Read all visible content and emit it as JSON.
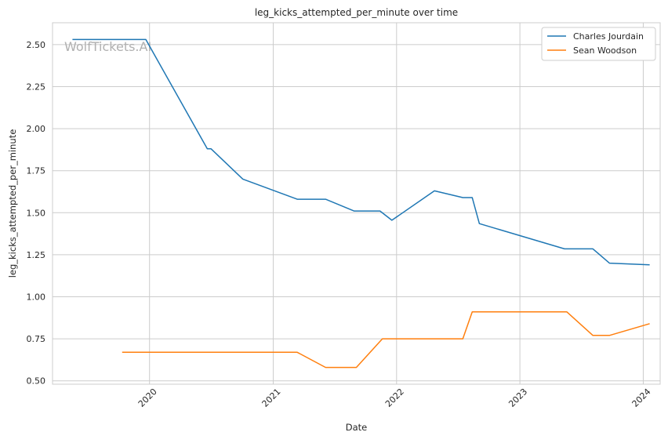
{
  "chart_data": {
    "type": "line",
    "title": "leg_kicks_attempted_per_minute over time",
    "xlabel": "Date",
    "ylabel": "leg_kicks_attempted_per_minute",
    "watermark": "WolfTickets.AI",
    "x_axis": {
      "type": "date",
      "range": [
        "2019-03-20",
        "2024-02-20"
      ],
      "tick_labels": [
        "2020",
        "2021",
        "2022",
        "2023",
        "2024"
      ],
      "tick_values": [
        "2020-01-01",
        "2021-01-01",
        "2022-01-01",
        "2023-01-01",
        "2024-01-01"
      ]
    },
    "y_axis": {
      "range": [
        0.48,
        2.63
      ],
      "ticks": [
        0.5,
        0.75,
        1.0,
        1.25,
        1.5,
        1.75,
        2.0,
        2.25,
        2.5
      ],
      "tick_labels": [
        "0.50",
        "0.75",
        "1.00",
        "1.25",
        "1.50",
        "1.75",
        "2.00",
        "2.25",
        "2.50"
      ]
    },
    "grid": true,
    "legend_position": "top-right",
    "series": [
      {
        "name": "Charles Jourdain",
        "color": "#1f77b4",
        "points": [
          [
            "2019-05-18",
            2.53
          ],
          [
            "2019-12-21",
            2.53
          ],
          [
            "2020-06-20",
            1.88
          ],
          [
            "2020-07-01",
            1.88
          ],
          [
            "2020-10-03",
            1.7
          ],
          [
            "2021-03-13",
            1.58
          ],
          [
            "2021-06-05",
            1.58
          ],
          [
            "2021-08-28",
            1.51
          ],
          [
            "2021-11-13",
            1.51
          ],
          [
            "2021-12-18",
            1.455
          ],
          [
            "2022-04-23",
            1.63
          ],
          [
            "2022-07-16",
            1.59
          ],
          [
            "2022-08-13",
            1.59
          ],
          [
            "2022-09-03",
            1.435
          ],
          [
            "2023-05-13",
            1.285
          ],
          [
            "2023-08-05",
            1.285
          ],
          [
            "2023-09-23",
            1.2
          ],
          [
            "2024-01-20",
            1.19
          ]
        ]
      },
      {
        "name": "Sean Woodson",
        "color": "#ff7f0e",
        "points": [
          [
            "2019-10-12",
            0.67
          ],
          [
            "2021-03-13",
            0.67
          ],
          [
            "2021-06-05",
            0.58
          ],
          [
            "2021-09-04",
            0.58
          ],
          [
            "2021-11-20",
            0.75
          ],
          [
            "2022-07-16",
            0.75
          ],
          [
            "2022-08-13",
            0.91
          ],
          [
            "2023-05-20",
            0.91
          ],
          [
            "2023-08-05",
            0.77
          ],
          [
            "2023-09-23",
            0.77
          ],
          [
            "2024-01-20",
            0.84
          ]
        ]
      }
    ]
  }
}
